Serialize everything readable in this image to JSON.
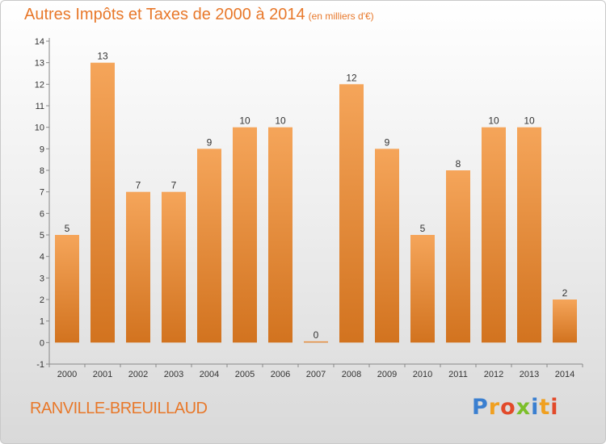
{
  "title": "Autres Impôts et Taxes de 2000 à 2014",
  "subtitle": "(en milliers d'€)",
  "location": "RANVILLE-BREUILLAUD",
  "logo": {
    "text": "Proxiti",
    "letters": [
      {
        "ch": "P",
        "color": "#3a7fd0"
      },
      {
        "ch": "r",
        "color": "#f0a020"
      },
      {
        "ch": "o",
        "color": "#e24a2a"
      },
      {
        "ch": "x",
        "color": "#7cbf2a"
      },
      {
        "ch": "i",
        "color": "#3a7fd0"
      },
      {
        "ch": "t",
        "color": "#f0a020"
      },
      {
        "ch": "i",
        "color": "#e24a2a"
      }
    ]
  },
  "colors": {
    "bar_light": "#f5a55a",
    "bar_dark": "#d2731f",
    "accent": "#e8782a"
  },
  "chart_data": {
    "type": "bar",
    "categories": [
      "2000",
      "2001",
      "2002",
      "2003",
      "2004",
      "2005",
      "2006",
      "2007",
      "2008",
      "2009",
      "2010",
      "2011",
      "2012",
      "2013",
      "2014"
    ],
    "values": [
      5,
      13,
      7,
      7,
      9,
      10,
      10,
      0,
      12,
      9,
      5,
      8,
      10,
      10,
      2
    ],
    "data_labels": [
      "5",
      "13",
      "7",
      "7",
      "9",
      "10",
      "10",
      "0",
      "12",
      "9",
      "5",
      "8",
      "10",
      "10",
      "2"
    ],
    "y_ticks": [
      "-1",
      "0",
      "1",
      "2",
      "3",
      "4",
      "5",
      "6",
      "7",
      "8",
      "9",
      "10",
      "11",
      "12",
      "13",
      "14"
    ],
    "ylim": [
      -1,
      14
    ],
    "grid": false,
    "title": "Autres Impôts et Taxes de 2000 à 2014",
    "xlabel": "",
    "ylabel": ""
  }
}
